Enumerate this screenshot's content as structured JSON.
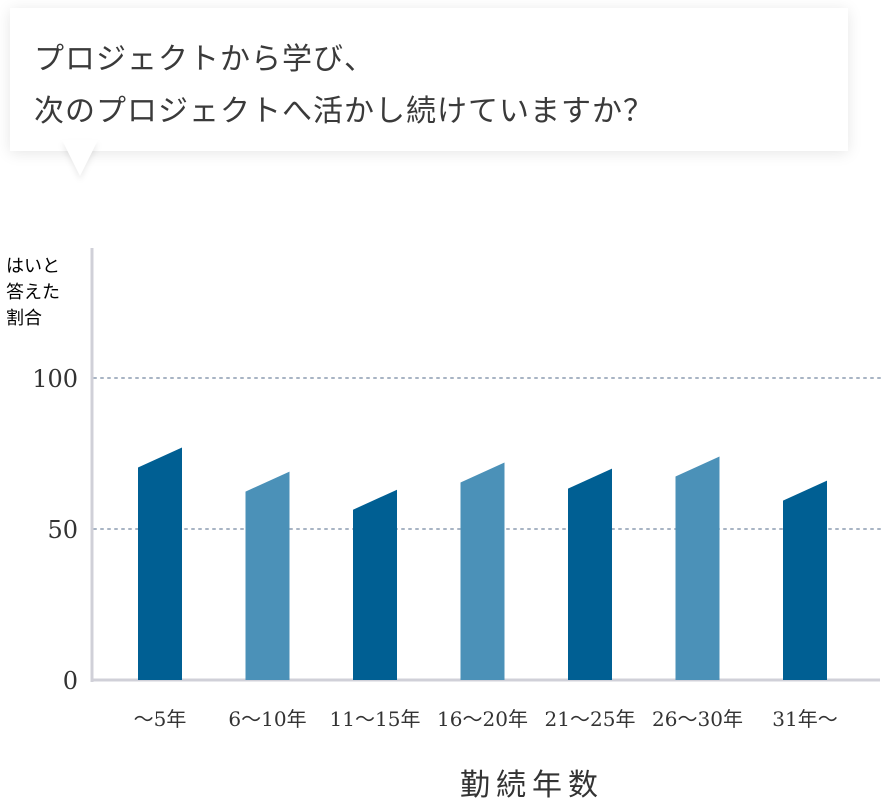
{
  "question": {
    "line1": "プロジェクトから学び、",
    "line2": "次のプロジェクトへ活かし続けていますか？"
  },
  "chart_data": {
    "type": "bar",
    "categories": [
      "〜5年",
      "6〜10年",
      "11〜15年",
      "16〜20年",
      "21〜25年",
      "26〜30年",
      "31年〜"
    ],
    "values": [
      77,
      69,
      63,
      72,
      70,
      74,
      66
    ],
    "ylabel": [
      "はいと",
      "答えた",
      "割合"
    ],
    "xlabel": "勤続年数",
    "yticks": [
      "0",
      "50",
      "100"
    ],
    "ylim": [
      0,
      100
    ],
    "grid": "dotted at 50 and 100",
    "colors": [
      "#005f93",
      "#4b91b8",
      "#005f93",
      "#4b91b8",
      "#005f93",
      "#4b91b8",
      "#005f93"
    ],
    "axis_color": "#d0d0d8",
    "grid_color": "#a8b4c4"
  }
}
